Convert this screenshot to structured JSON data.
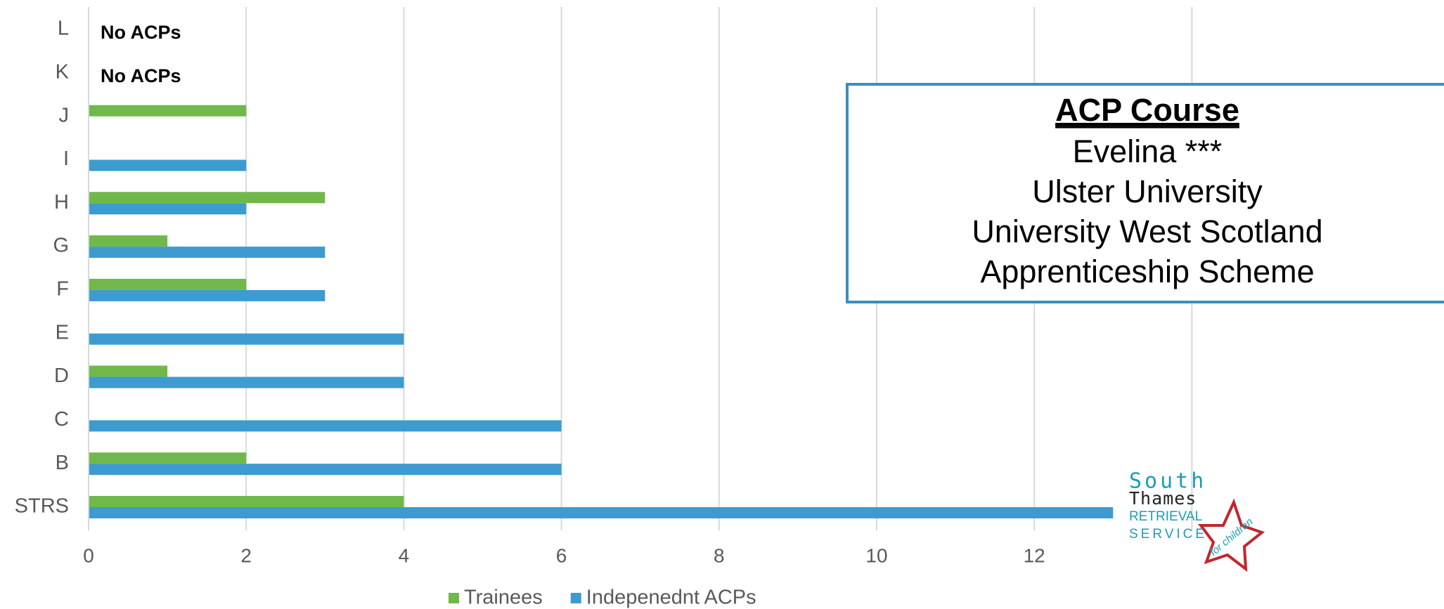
{
  "chart_data": {
    "type": "bar",
    "orientation": "horizontal",
    "categories": [
      "STRS",
      "B",
      "C",
      "D",
      "E",
      "F",
      "G",
      "H",
      "I",
      "J",
      "K",
      "L"
    ],
    "series": [
      {
        "name": "Trainees",
        "color": "#70b84a",
        "values": [
          4,
          2,
          null,
          1,
          null,
          2,
          1,
          3,
          null,
          2,
          null,
          null
        ]
      },
      {
        "name": "Indepenednt ACPs",
        "color": "#3d9bd0",
        "values": [
          13,
          6,
          6,
          4,
          4,
          3,
          3,
          2,
          2,
          null,
          null,
          null
        ]
      }
    ],
    "xlim": [
      0,
      14
    ],
    "xticks": [
      0,
      2,
      4,
      6,
      8,
      10,
      12
    ],
    "grid": true,
    "legend": "bottom",
    "annotations": [
      {
        "text": "No ACPs",
        "category": "L"
      },
      {
        "text": "No ACPs",
        "category": "K"
      }
    ],
    "text_box": {
      "title": "ACP Course",
      "lines": [
        "Evelina ***",
        "Ulster University",
        "University West Scotland",
        "Apprenticeship Scheme"
      ]
    },
    "logo": {
      "lines": [
        "South",
        "Thames",
        "RETRIEVAL",
        "SERVICE"
      ],
      "badge": "for children"
    }
  }
}
